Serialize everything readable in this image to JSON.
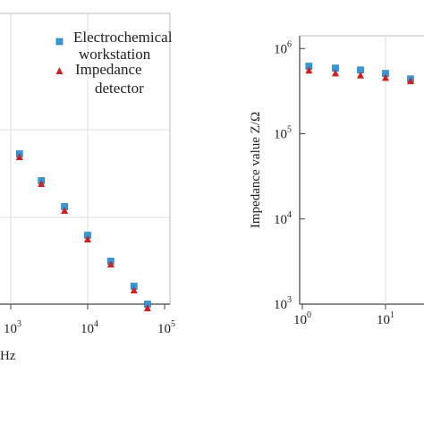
{
  "chart_data": [
    {
      "type": "scatter",
      "panel": "left",
      "xscale": "log",
      "xlim": [
        750,
        120000
      ],
      "xticks": [
        {
          "base": "10",
          "exp": "3"
        },
        {
          "base": "10",
          "exp": "4"
        },
        {
          "base": "10",
          "exp": "5"
        }
      ],
      "xlabel_fragment": "Hz",
      "grid": true,
      "legend_position": "top-right",
      "series": [
        {
          "name": "Electrochemical workstation",
          "color": "#3399dd",
          "marker": "square",
          "x": [
            1300,
            2500,
            5000,
            10000,
            20000,
            40000,
            60000
          ],
          "y": [
            172,
            202,
            231,
            263,
            292,
            320,
            340
          ]
        },
        {
          "name": "Impedance detector",
          "color": "#cc2222",
          "marker": "triangle",
          "x": [
            1300,
            2500,
            5000,
            10000,
            20000,
            40000,
            60000
          ],
          "y": [
            175,
            205,
            235,
            267,
            295,
            324,
            344
          ]
        }
      ],
      "legend": {
        "workstation_line1": "Electrochemical",
        "workstation_line2": "workstation",
        "detector_line1": "Impedance",
        "detector_line2": "detector"
      }
    },
    {
      "type": "scatter",
      "panel": "right",
      "xscale": "log",
      "yscale": "log",
      "ylabel": "Impedance value Z/Ω",
      "yticks": [
        {
          "base": "10",
          "exp": "6"
        },
        {
          "base": "10",
          "exp": "5"
        },
        {
          "base": "10",
          "exp": "4"
        },
        {
          "base": "10",
          "exp": "3"
        }
      ],
      "xticks": [
        {
          "base": "10",
          "exp": "0"
        },
        {
          "base": "10",
          "exp": "1"
        }
      ],
      "ylim": [
        1000,
        1500000
      ],
      "grid": true,
      "series": [
        {
          "name": "Electrochemical workstation",
          "color": "#3399dd",
          "marker": "square",
          "x": [
            1.2,
            2.5,
            5,
            10,
            20
          ],
          "y": [
            620000,
            590000,
            560000,
            510000,
            440000
          ]
        },
        {
          "name": "Impedance detector",
          "color": "#cc2222",
          "marker": "triangle",
          "x": [
            1.2,
            2.5,
            5,
            10,
            20
          ],
          "y": [
            560000,
            520000,
            490000,
            460000,
            420000
          ]
        }
      ]
    }
  ]
}
